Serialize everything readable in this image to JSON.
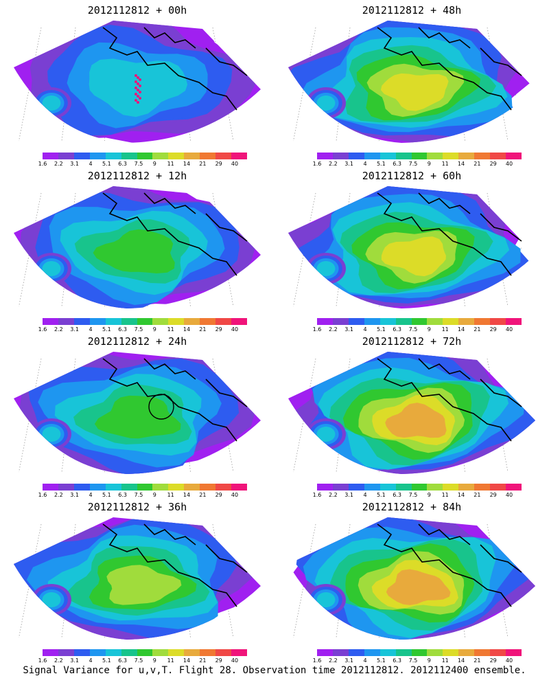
{
  "panels": [
    {
      "title": "2012112812 + 00h",
      "intensity": 0.25,
      "marker": "dots"
    },
    {
      "title": "2012112812 + 12h",
      "intensity": 0.45,
      "marker": "none"
    },
    {
      "title": "2012112812 + 24h",
      "intensity": 0.55,
      "marker": "circle"
    },
    {
      "title": "2012112812 + 36h",
      "intensity": 0.62,
      "marker": "none"
    },
    {
      "title": "2012112812 + 48h",
      "intensity": 0.7,
      "marker": "none"
    },
    {
      "title": "2012112812 + 60h",
      "intensity": 0.78,
      "marker": "none"
    },
    {
      "title": "2012112812 + 72h",
      "intensity": 0.85,
      "marker": "none"
    },
    {
      "title": "2012112812 + 84h",
      "intensity": 0.9,
      "marker": "none"
    }
  ],
  "colorbar": {
    "labels": [
      "1.6",
      "2.2",
      "3.1",
      "4",
      "5.1",
      "6.3",
      "7.5",
      "9",
      "11",
      "14",
      "21",
      "29",
      "40"
    ],
    "colors": [
      "#a020f0",
      "#7a3fd2",
      "#2e5cf0",
      "#1e96f0",
      "#18c4d8",
      "#18c48c",
      "#30c830",
      "#a0dc3c",
      "#dcdc28",
      "#e8aa3c",
      "#f07832",
      "#f04846",
      "#f0147a"
    ]
  },
  "caption": "Signal Variance for u,v,T. Flight 28. Observation time 2012112812. 2012112400 ensemble."
}
